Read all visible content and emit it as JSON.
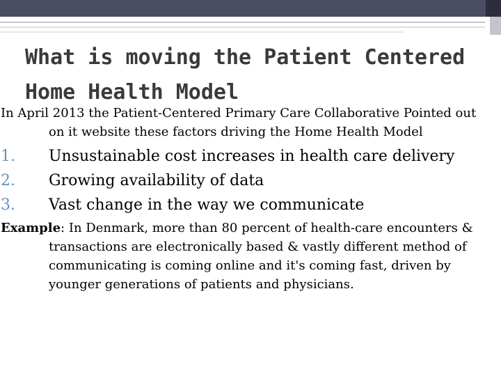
{
  "slide": {
    "title": "What is moving the Patient Centered Home Health Model",
    "intro": "In April 2013 the Patient-Centered Primary Care Collaborative Pointed out on it website these factors driving the Home Health Model",
    "factors": [
      {
        "number": "1.",
        "text": "Unsustainable cost increases in health care delivery"
      },
      {
        "number": "2.",
        "text": "Growing availability of data"
      },
      {
        "number": "3.",
        "text": "Vast change in the way we communicate"
      }
    ],
    "example": {
      "label": "Example",
      "separator": ":",
      "text": " In Denmark, more than 80 percent of health-care encounters & transactions are electronically based & vastly different method of communicating is coming online and it's coming fast, driven by younger generations of patients and physicians."
    }
  }
}
